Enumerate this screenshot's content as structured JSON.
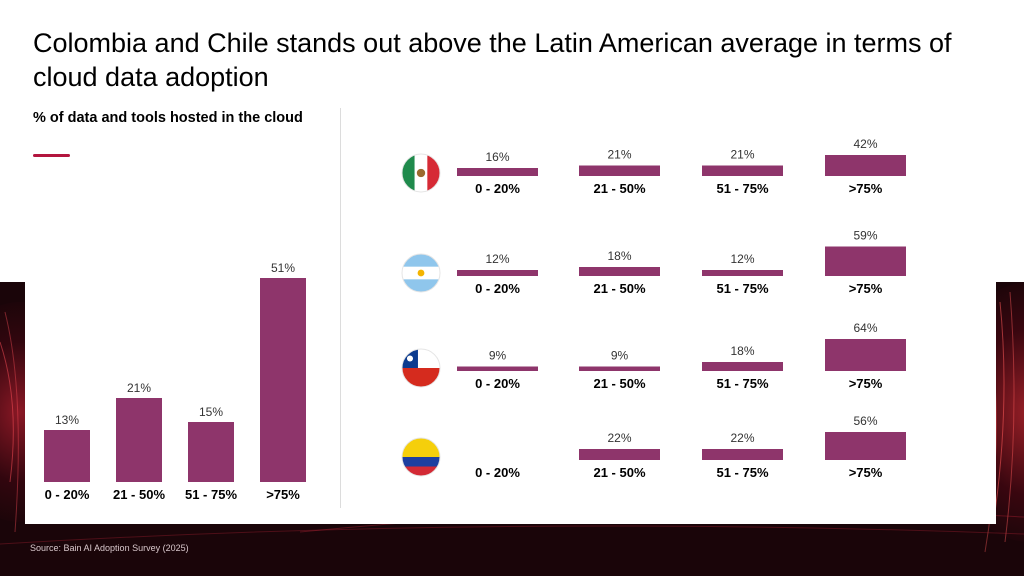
{
  "title": "Colombia and Chile stands out above the Latin American average in terms of cloud data adoption",
  "left_subtitle": "% of data and tools hosted in the cloud",
  "source": "Source: Bain AI Adoption Survey (2025)",
  "colors": {
    "bar": "#8e356b",
    "accent": "#b3153e",
    "background_band": "#1a0509"
  },
  "chart_data": [
    {
      "type": "bar",
      "categories": [
        "0 - 20%",
        "21 - 50%",
        "51 - 75%",
        ">75%"
      ],
      "values": [
        13,
        21,
        15,
        51
      ],
      "value_labels": [
        "13%",
        "21%",
        "15%",
        "51%"
      ],
      "title": "",
      "xlabel": "",
      "ylabel": "",
      "ylim": [
        0,
        51
      ]
    },
    {
      "type": "bar",
      "categories": [
        "0 - 20%",
        "21 - 50%",
        "51 - 75%",
        ">75%"
      ],
      "series": [
        {
          "flag": "mexico-flag-icon",
          "values": [
            16,
            21,
            21,
            42
          ],
          "value_labels": [
            "16%",
            "21%",
            "21%",
            "42%"
          ]
        },
        {
          "flag": "argentina-flag-icon",
          "values": [
            12,
            18,
            12,
            59
          ],
          "value_labels": [
            "12%",
            "18%",
            "12%",
            "59%"
          ]
        },
        {
          "flag": "chile-flag-icon",
          "values": [
            9,
            9,
            18,
            64
          ],
          "value_labels": [
            "9%",
            "9%",
            "18%",
            "64%"
          ]
        },
        {
          "flag": "colombia-flag-icon",
          "values": [
            0,
            22,
            22,
            56
          ],
          "value_labels": [
            "",
            "22%",
            "22%",
            "56%"
          ]
        }
      ],
      "ylim": [
        0,
        64
      ]
    }
  ]
}
